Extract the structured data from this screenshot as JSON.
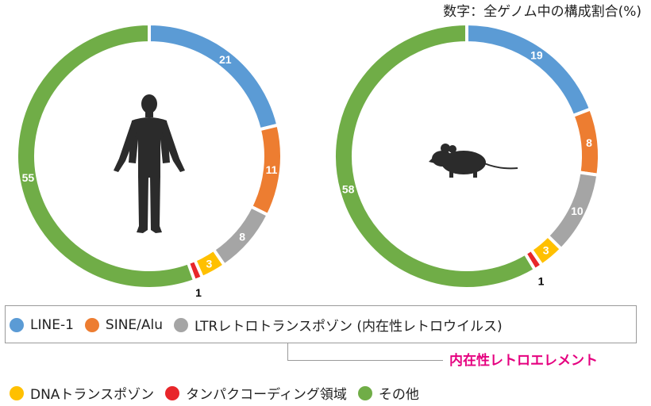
{
  "note": "数字：全ゲノム中の構成割合(%)",
  "colors": {
    "line1": "#5b9bd5",
    "sine": "#ed7d31",
    "ltr": "#a5a5a5",
    "dna": "#ffc000",
    "coding": "#e8262a",
    "other": "#70ad47"
  },
  "legend": {
    "line1": "LINE-1",
    "sine": "SINE/Alu",
    "ltr": "LTRレトロトランスポゾン (内在性レトロウイルス)",
    "callout": "内在性レトロエレメント",
    "dna": "DNAトランスポゾン",
    "coding": "タンパクコーディング領域",
    "other": "その他"
  },
  "icons": [
    "human-silhouette-icon",
    "mouse-silhouette-icon"
  ],
  "chart_data": [
    {
      "type": "pie",
      "categories": [
        "LINE-1",
        "SINE/Alu",
        "LTRレトロトランスポゾン (内在性レトロウイルス)",
        "DNAトランスポゾン",
        "タンパクコーディング領域",
        "その他"
      ],
      "values": [
        21,
        11,
        8,
        3,
        1,
        55
      ],
      "labels": [
        "21",
        "11",
        "8",
        "3",
        "1",
        "55"
      ],
      "icon": "human-silhouette-icon"
    },
    {
      "type": "pie",
      "categories": [
        "LINE-1",
        "SINE/Alu",
        "LTRレトロトランスポゾン (内在性レトロウイルス)",
        "DNAトランスポゾン",
        "タンパクコーディング領域",
        "その他"
      ],
      "values": [
        19,
        8,
        10,
        3,
        1,
        58
      ],
      "labels": [
        "19",
        "8",
        "10",
        "3",
        "1",
        "58"
      ],
      "icon": "mouse-silhouette-icon"
    }
  ]
}
